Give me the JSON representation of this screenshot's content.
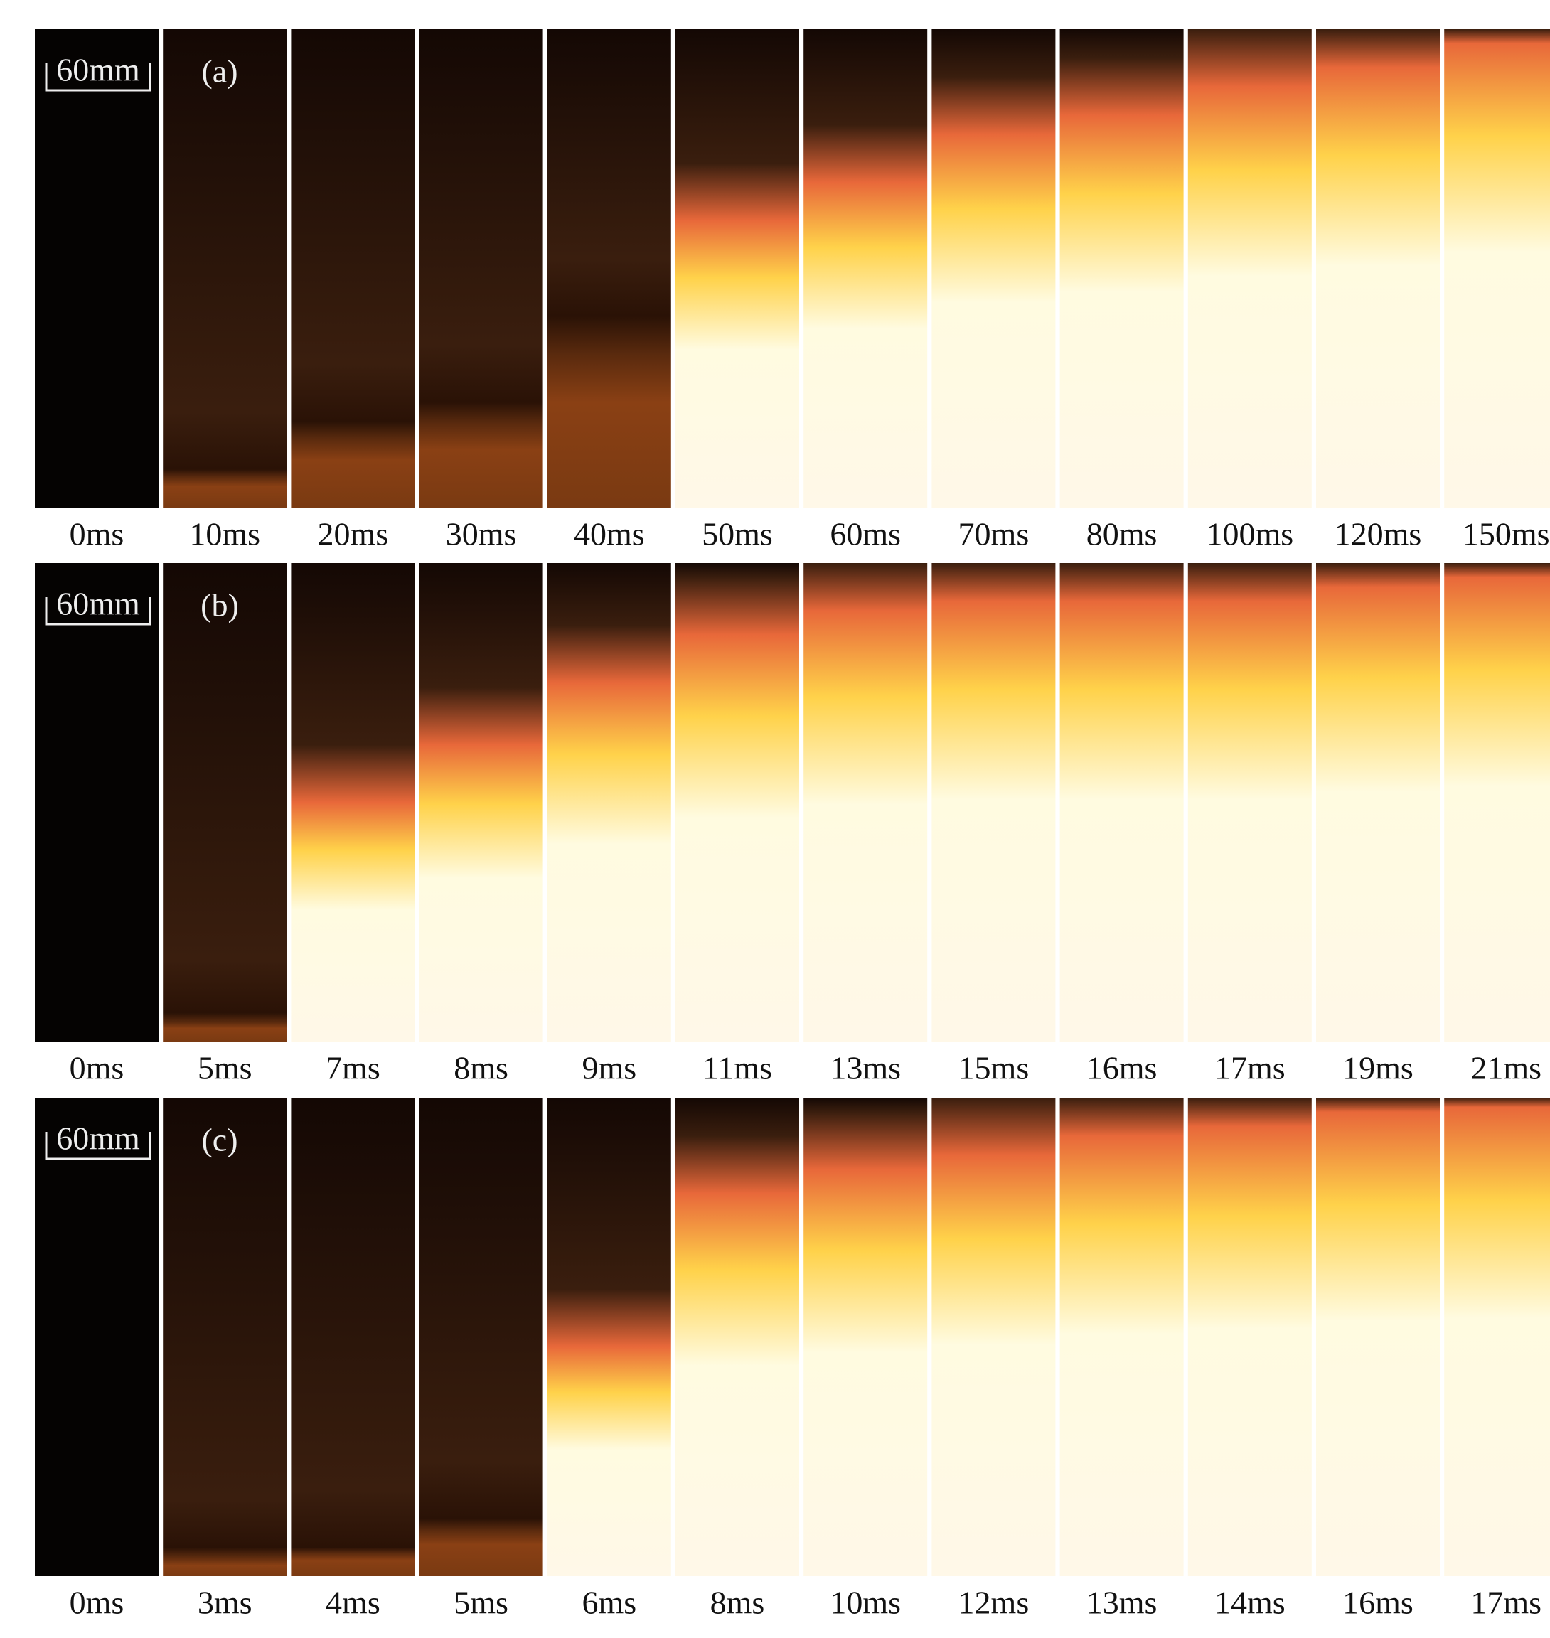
{
  "panels": [
    {
      "label": "(a)",
      "scale_bar": "60mm",
      "frames": [
        "0ms",
        "10ms",
        "20ms",
        "30ms",
        "40ms",
        "50ms",
        "60ms",
        "70ms",
        "80ms",
        "100ms",
        "120ms",
        "150ms"
      ]
    },
    {
      "label": "(b)",
      "scale_bar": "60mm",
      "frames": [
        "0ms",
        "5ms",
        "7ms",
        "8ms",
        "9ms",
        "11ms",
        "13ms",
        "15ms",
        "16ms",
        "17ms",
        "19ms",
        "21ms"
      ]
    },
    {
      "label": "(c)",
      "scale_bar": "60mm",
      "frames": [
        "0ms",
        "3ms",
        "4ms",
        "5ms",
        "6ms",
        "8ms",
        "10ms",
        "12ms",
        "13ms",
        "14ms",
        "16ms",
        "17ms"
      ]
    }
  ]
}
